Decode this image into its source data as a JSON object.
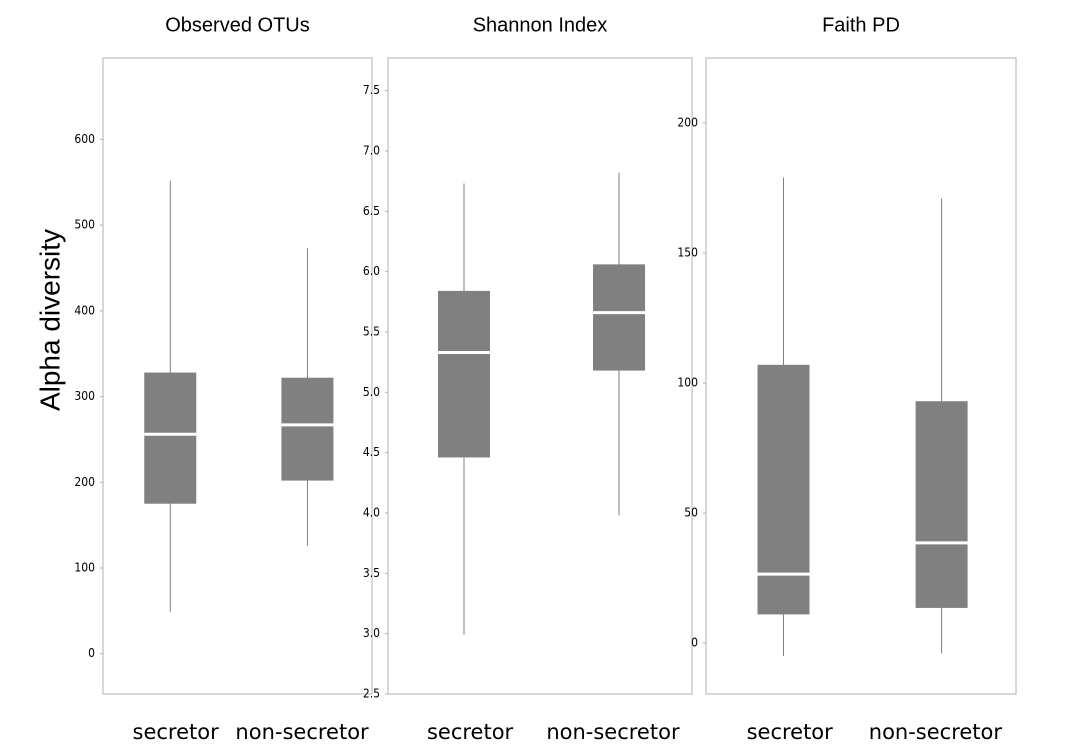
{
  "chart_data": [
    {
      "type": "box",
      "title": "Observed OTUs",
      "ylabel": "Alpha diversity",
      "categories": [
        "secretor",
        "non-secretor"
      ],
      "boxes": [
        {
          "min": 49,
          "q1": 175,
          "median": 256,
          "q3": 328,
          "max": 552
        },
        {
          "min": 126,
          "q1": 202,
          "median": 267,
          "q3": 322,
          "max": 473
        }
      ],
      "color": "#808080",
      "median_color": "#ffffff",
      "ylim": [
        -47,
        695
      ],
      "yticks": [
        0,
        100,
        200,
        300,
        400,
        500,
        600
      ]
    },
    {
      "type": "box",
      "title": "Shannon Index",
      "categories": [
        "secretor",
        "non-secretor"
      ],
      "boxes": [
        {
          "min": 2.99,
          "q1": 4.46,
          "median": 5.33,
          "q3": 5.84,
          "max": 6.73
        },
        {
          "min": 3.98,
          "q1": 5.18,
          "median": 5.66,
          "q3": 6.06,
          "max": 6.82
        }
      ],
      "color": "#808080",
      "median_color": "#ffffff",
      "ylim": [
        2.5,
        7.77
      ],
      "yticks": [
        2.5,
        {
          "value": 3,
          "label": "3.0"
        },
        3.5,
        {
          "value": 4,
          "label": "4.0"
        },
        4.5,
        {
          "value": 5,
          "label": "5.0"
        },
        5.5,
        {
          "value": 6,
          "label": "6.0"
        },
        6.5,
        {
          "value": 7,
          "label": "7.0"
        },
        7.5
      ]
    },
    {
      "type": "box",
      "title": "Faith PD",
      "categories": [
        "secretor",
        "non-secretor"
      ],
      "boxes": [
        {
          "min": -5,
          "q1": 11,
          "median": 26.5,
          "q3": 107,
          "max": 179
        },
        {
          "min": -4,
          "q1": 13.5,
          "median": 38.5,
          "q3": 93,
          "max": 171
        }
      ],
      "color": "#808080",
      "median_color": "#ffffff",
      "ylim": [
        -19.6,
        225
      ],
      "yticks": [
        0,
        50,
        100,
        150,
        200
      ]
    }
  ]
}
